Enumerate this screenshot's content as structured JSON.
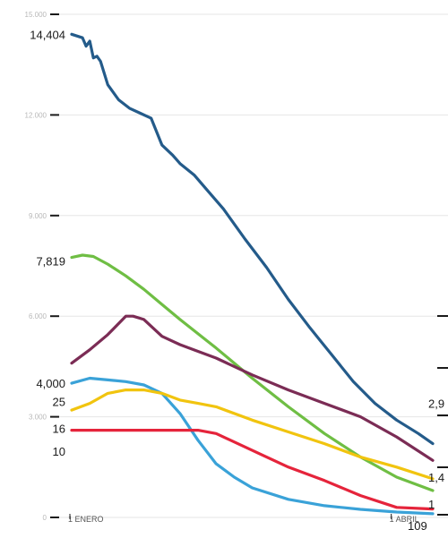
{
  "chart_data": {
    "type": "line",
    "title": "",
    "xlabel": "",
    "ylabel": "",
    "grid": true,
    "legend": "none",
    "ylim": [
      0,
      15000
    ],
    "xlim": [
      0,
      100
    ],
    "y_ticks": [
      {
        "value": 0,
        "label": "0"
      },
      {
        "value": 3000,
        "label": "3.000"
      },
      {
        "value": 6000,
        "label": "6.000"
      },
      {
        "value": 9000,
        "label": "9.000"
      },
      {
        "value": 12000,
        "label": "12.000"
      },
      {
        "value": 15000,
        "label": "15.000"
      }
    ],
    "x_ticks": [
      {
        "x": 0,
        "label": "1 ENERO"
      },
      {
        "x": 89,
        "label": "1 ABRIL"
      }
    ],
    "series": [
      {
        "color": "#245b8a",
        "x": [
          0,
          3,
          4,
          5,
          6,
          7,
          8,
          10,
          13,
          16,
          19,
          22,
          25,
          28,
          30,
          34,
          38,
          42,
          48,
          54,
          60,
          66,
          72,
          78,
          84,
          90,
          96,
          100
        ],
        "y": [
          14404,
          14300,
          14050,
          14200,
          13700,
          13750,
          13600,
          12900,
          12450,
          12200,
          12050,
          11900,
          11100,
          10800,
          10550,
          10200,
          9700,
          9200,
          8300,
          7450,
          6500,
          5650,
          4850,
          4050,
          3400,
          2900,
          2500,
          2200
        ]
      },
      {
        "color": "#6fbe44",
        "x": [
          0,
          3,
          6,
          10,
          15,
          20,
          25,
          30,
          40,
          50,
          60,
          70,
          80,
          90,
          100
        ],
        "y": [
          7750,
          7819,
          7780,
          7550,
          7200,
          6800,
          6350,
          5900,
          5050,
          4150,
          3300,
          2500,
          1800,
          1200,
          800
        ]
      },
      {
        "color": "#7b2c55",
        "x": [
          0,
          5,
          10,
          15,
          17,
          20,
          25,
          30,
          35,
          40,
          50,
          60,
          70,
          80,
          90,
          100
        ],
        "y": [
          4600,
          5000,
          5450,
          6000,
          6000,
          5900,
          5400,
          5150,
          4950,
          4750,
          4250,
          3800,
          3400,
          3000,
          2400,
          1700
        ]
      },
      {
        "color": "#3aa2d8",
        "x": [
          0,
          5,
          10,
          15,
          20,
          25,
          30,
          35,
          40,
          45,
          50,
          60,
          70,
          80,
          90,
          100
        ],
        "y": [
          4000,
          4150,
          4100,
          4050,
          3950,
          3700,
          3100,
          2300,
          1600,
          1200,
          880,
          540,
          350,
          240,
          160,
          109
        ]
      },
      {
        "color": "#f1c40f",
        "x": [
          0,
          5,
          10,
          15,
          20,
          25,
          30,
          35,
          40,
          50,
          60,
          70,
          80,
          90,
          100
        ],
        "y": [
          3200,
          3400,
          3700,
          3800,
          3800,
          3700,
          3500,
          3400,
          3300,
          2900,
          2550,
          2200,
          1800,
          1500,
          1150
        ]
      },
      {
        "color": "#e5243b",
        "x": [
          0,
          12,
          20,
          30,
          35,
          40,
          50,
          60,
          70,
          80,
          90,
          100
        ],
        "y": [
          2600,
          2600,
          2600,
          2600,
          2600,
          2500,
          2000,
          1500,
          1100,
          650,
          300,
          250
        ]
      }
    ],
    "annotations": [
      {
        "text": "14,404",
        "x": 0,
        "y": 14404
      },
      {
        "text": "7,819",
        "x": 3,
        "y": 7819
      },
      {
        "text": "4,000",
        "x": 0,
        "y": 4000
      },
      {
        "text": "25",
        "x": 0,
        "y": 3450
      },
      {
        "text": "16",
        "x": 0,
        "y": 2660
      },
      {
        "text": "10",
        "x": 0,
        "y": 1970
      },
      {
        "text": "2,9",
        "x": 100,
        "y": 3400
      },
      {
        "text": "1,4",
        "x": 100,
        "y": 1200
      },
      {
        "text": "1",
        "x": 100,
        "y": 400
      },
      {
        "text": "109",
        "x": 90,
        "y": -300
      }
    ]
  }
}
